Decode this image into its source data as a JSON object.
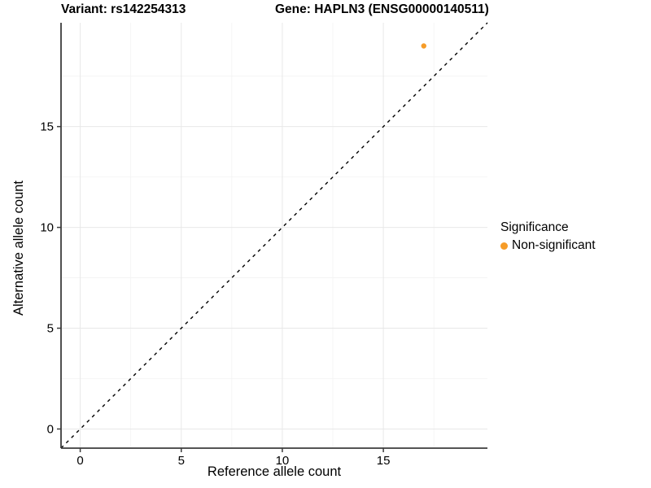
{
  "chart_data": {
    "type": "scatter",
    "title_left": "Variant: rs142254313",
    "title_right": "Gene: HAPLN3 (ENSG00000140511)",
    "xlabel": "Reference allele count",
    "ylabel": "Alternative allele count",
    "xlim": [
      -0.95,
      20.15
    ],
    "ylim": [
      -0.95,
      20.15
    ],
    "xticks": [
      0,
      5,
      10,
      15
    ],
    "yticks": [
      0,
      5,
      10,
      15
    ],
    "minor_xticks": [
      2.5,
      7.5,
      12.5,
      17.5
    ],
    "minor_yticks": [
      2.5,
      7.5,
      12.5,
      17.5
    ],
    "grid": "major and minor gridlines, light gray on white panel",
    "series": [
      {
        "name": "Non-significant",
        "color": "#F69C28",
        "points": [
          {
            "x": 17,
            "y": 19
          }
        ]
      }
    ],
    "reference_line": {
      "kind": "identity y=x",
      "slope": 1,
      "intercept": 0,
      "linetype": "dashed",
      "color": "#000000"
    },
    "legend": {
      "title": "Significance",
      "position": "right",
      "entries": [
        {
          "label": "Non-significant",
          "color": "#F69C28"
        }
      ]
    }
  },
  "colors": {
    "background": "#FFFFFF",
    "grid_major": "#E8E8E8",
    "grid_minor": "#F3F3F3",
    "axis_line": "#3C3C3C",
    "tick_mark": "#3C3C3C",
    "text": "#000000",
    "point": "#F69C28",
    "reference_line": "#000000"
  }
}
